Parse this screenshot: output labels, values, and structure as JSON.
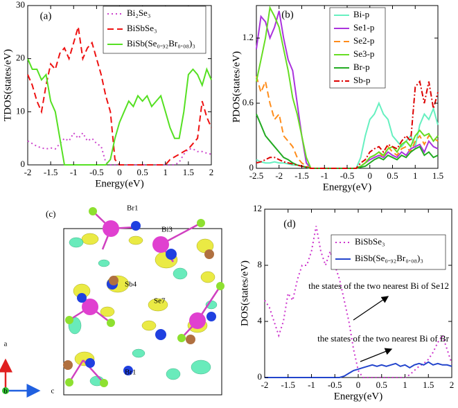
{
  "chart_data": [
    {
      "type": "line",
      "panel_label": "(a)",
      "xlabel": "Energy(eV)",
      "ylabel": "TDOS(states/eV)",
      "xlim": [
        -2,
        2
      ],
      "xticks": [
        -2,
        -1.5,
        -1,
        -0.5,
        0,
        0.5,
        1,
        1.5,
        2
      ],
      "ylim": [
        0,
        30
      ],
      "yticks": [
        0,
        10,
        20,
        30
      ],
      "legend": "upper right",
      "x": [
        -2,
        -1.9,
        -1.8,
        -1.7,
        -1.6,
        -1.5,
        -1.4,
        -1.3,
        -1.2,
        -1.1,
        -1,
        -0.9,
        -0.8,
        -0.7,
        -0.6,
        -0.5,
        -0.4,
        -0.3,
        -0.2,
        -0.1,
        0,
        0.1,
        0.2,
        0.3,
        0.4,
        0.5,
        0.6,
        0.7,
        0.8,
        0.9,
        1,
        1.1,
        1.2,
        1.3,
        1.4,
        1.5,
        1.6,
        1.7,
        1.8,
        1.9,
        2
      ],
      "series": [
        {
          "name": "Bi₂Se₃",
          "color": "#cc44cc",
          "style": "dotted",
          "values": [
            4.5,
            4,
            3.5,
            3.2,
            3,
            3.2,
            3,
            4,
            5,
            4.5,
            6,
            5,
            6,
            4.5,
            5,
            4,
            3.5,
            0.5,
            0,
            0,
            0,
            0,
            0,
            0,
            0,
            0,
            0,
            0,
            0,
            0,
            0,
            0,
            0,
            0.5,
            2,
            3,
            3,
            2.5,
            2.5,
            2.2,
            2
          ]
        },
        {
          "name": "BiSbSe₃",
          "color": "#ee1111",
          "style": "dashed",
          "values": [
            17,
            15,
            12,
            10,
            15,
            19,
            18,
            21,
            22,
            20,
            23,
            26,
            20,
            22,
            23,
            20,
            17,
            13,
            10,
            1,
            0,
            0,
            0,
            0,
            0,
            0,
            0,
            0,
            0,
            0,
            0,
            1,
            1.5,
            2,
            2.5,
            3,
            4,
            5,
            12,
            9,
            7
          ]
        },
        {
          "name": "BiSb(Se₀.₉₂Br₀.₀₈)₃",
          "color": "#55e022",
          "style": "solid",
          "values": [
            20,
            18,
            18,
            16,
            17,
            12,
            10,
            5,
            0,
            0,
            0,
            0,
            0,
            0,
            0,
            0,
            0,
            0,
            1,
            5,
            8,
            10,
            12,
            11,
            13,
            12,
            13,
            11,
            12,
            13,
            10,
            7,
            5,
            5,
            10,
            17,
            18,
            17,
            15,
            18,
            16
          ]
        }
      ]
    },
    {
      "type": "line",
      "panel_label": "(b)",
      "xlabel": "Energy(eV)",
      "ylabel": "PDOS(states/eV)",
      "xlim": [
        -2.5,
        1.5
      ],
      "xticks": [
        -2.5,
        -2,
        -1.5,
        -1,
        -0.5,
        0,
        0.5,
        1,
        1.5
      ],
      "ylim": [
        0,
        1.5
      ],
      "yticks": [
        0,
        0.6,
        1.2
      ],
      "legend": "upper right",
      "x": [
        -2.5,
        -2.4,
        -2.3,
        -2.2,
        -2.1,
        -2,
        -1.9,
        -1.8,
        -1.7,
        -1.6,
        -1.5,
        -1.4,
        -1.3,
        -1.2,
        -1.1,
        -1,
        -0.9,
        -0.8,
        -0.7,
        -0.6,
        -0.5,
        -0.4,
        -0.3,
        -0.2,
        -0.1,
        0,
        0.1,
        0.2,
        0.3,
        0.4,
        0.5,
        0.6,
        0.7,
        0.8,
        0.9,
        1,
        1.1,
        1.2,
        1.3,
        1.4,
        1.5
      ],
      "series": [
        {
          "name": "Bi-p",
          "color": "#66f0c0",
          "style": "solid",
          "values": [
            0.08,
            0.06,
            0.05,
            0.05,
            0.06,
            0.05,
            0.05,
            0.04,
            0.03,
            0.03,
            0.02,
            0.01,
            0,
            0,
            0,
            0,
            0,
            0,
            0,
            0,
            0,
            0,
            0,
            0.1,
            0.3,
            0.45,
            0.5,
            0.6,
            0.5,
            0.45,
            0.3,
            0.25,
            0.2,
            0.25,
            0.3,
            0.2,
            0.4,
            0.5,
            0.45,
            0.55,
            0.4
          ]
        },
        {
          "name": "Se1-p",
          "color": "#aa33dd",
          "style": "solid",
          "values": [
            1.1,
            1.4,
            1.35,
            1.2,
            1.3,
            1.45,
            1.2,
            1,
            0.9,
            0.6,
            0.3,
            0.05,
            0,
            0,
            0,
            0,
            0,
            0,
            0,
            0,
            0,
            0,
            0,
            0.02,
            0.05,
            0.08,
            0.1,
            0.12,
            0.1,
            0.15,
            0.12,
            0.1,
            0.15,
            0.12,
            0.18,
            0.2,
            0.22,
            0.15,
            0.25,
            0.2,
            0.18
          ]
        },
        {
          "name": "Se2-p",
          "color": "#ff8c1a",
          "style": "dashed",
          "values": [
            0.85,
            0.7,
            0.8,
            0.6,
            0.45,
            0.5,
            0.3,
            0.25,
            0.2,
            0.1,
            0.05,
            0.02,
            0,
            0,
            0,
            0,
            0,
            0,
            0,
            0,
            0,
            0,
            0,
            0.02,
            0.05,
            0.1,
            0.12,
            0.15,
            0.1,
            0.2,
            0.15,
            0.12,
            0.18,
            0.2,
            0.15,
            0.25,
            0.3,
            0.22,
            0.3,
            0.28,
            0.25
          ]
        },
        {
          "name": "Se3-p",
          "color": "#66dd22",
          "style": "solid",
          "values": [
            0.8,
            1,
            1.2,
            1.48,
            1.4,
            1.3,
            1.1,
            0.9,
            0.65,
            0.5,
            0.3,
            0.1,
            0,
            0,
            0,
            0,
            0,
            0,
            0,
            0,
            0,
            0,
            0,
            0.02,
            0.05,
            0.1,
            0.12,
            0.15,
            0.12,
            0.18,
            0.2,
            0.15,
            0.22,
            0.25,
            0.2,
            0.3,
            0.35,
            0.3,
            0.32,
            0.25,
            0.3
          ]
        },
        {
          "name": "Br-p",
          "color": "#22aa22",
          "style": "solid",
          "values": [
            0.5,
            0.4,
            0.3,
            0.25,
            0.2,
            0.15,
            0.1,
            0.08,
            0.05,
            0.03,
            0.02,
            0.01,
            0,
            0,
            0,
            0,
            0,
            0,
            0,
            0,
            0,
            0,
            0,
            0.01,
            0.02,
            0.05,
            0.08,
            0.1,
            0.08,
            0.12,
            0.1,
            0.08,
            0.12,
            0.1,
            0.15,
            0.18,
            0.2,
            0.12,
            0.15,
            0.1,
            0.12
          ]
        },
        {
          "name": "Sb-p",
          "color": "#dd0000",
          "style": "dashdot",
          "values": [
            0.05,
            0.06,
            0.08,
            0.1,
            0.1,
            0.08,
            0.06,
            0.05,
            0.04,
            0.03,
            0.02,
            0.01,
            0,
            0,
            0,
            0,
            0,
            0,
            0,
            0,
            0,
            0,
            0,
            0.05,
            0.08,
            0.15,
            0.18,
            0.2,
            0.15,
            0.22,
            0.2,
            0.18,
            0.25,
            0.3,
            0.25,
            0.75,
            0.8,
            0.6,
            0.8,
            0.55,
            0.7
          ]
        }
      ]
    },
    {
      "type": "line",
      "panel_label": "(d)",
      "xlabel": "Energy(eV)",
      "ylabel": "DOS(states/eV)",
      "xlim": [
        -2,
        2
      ],
      "xticks": [
        -2,
        -1.5,
        -1,
        -0.5,
        0,
        0.5,
        1,
        1.5,
        2
      ],
      "ylim": [
        0,
        12
      ],
      "yticks": [
        0,
        4,
        8,
        12
      ],
      "legend": "upper right",
      "annotations": [
        "the states of the two nearest Bi of Se12",
        "the states of the two nearest Bi of Br"
      ],
      "x": [
        -2,
        -1.9,
        -1.8,
        -1.7,
        -1.6,
        -1.5,
        -1.4,
        -1.3,
        -1.2,
        -1.1,
        -1,
        -0.9,
        -0.8,
        -0.7,
        -0.6,
        -0.5,
        -0.4,
        -0.3,
        -0.2,
        -0.1,
        0,
        0.1,
        0.2,
        0.3,
        0.4,
        0.5,
        0.6,
        0.7,
        0.8,
        0.9,
        1,
        1.1,
        1.2,
        1.3,
        1.4,
        1.5,
        1.6,
        1.7,
        1.8,
        1.9,
        2
      ],
      "series": [
        {
          "name": "BiSbSe₃",
          "color": "#cc33cc",
          "style": "dotted",
          "values": [
            5.5,
            5,
            4,
            3,
            4,
            6,
            5.5,
            7,
            8,
            8,
            9,
            10.8,
            9,
            8,
            9,
            8,
            7,
            5.5,
            4,
            2,
            0.5,
            0,
            0,
            0,
            0,
            0,
            0,
            0,
            0,
            0,
            0,
            0.2,
            0.5,
            0.8,
            1,
            1.3,
            1.8,
            2.5,
            3,
            2,
            1
          ]
        },
        {
          "name": "BiSb(Se₀.₉₂Br₀.₀₈)₃",
          "color": "#2244cc",
          "style": "solid",
          "values": [
            0,
            0,
            0,
            0,
            0,
            0,
            0,
            0,
            0,
            0,
            0,
            0,
            0,
            0,
            0,
            0,
            0,
            0.1,
            0.3,
            0.5,
            0.6,
            0.7,
            0.8,
            0.9,
            0.8,
            0.9,
            0.8,
            0.9,
            1,
            0.8,
            0.9,
            0.7,
            0.9,
            1,
            0.9,
            1.1,
            0.9,
            1,
            0.9,
            0.9,
            0.8
          ]
        }
      ]
    }
  ],
  "structure": {
    "panel_label": "(c)",
    "atom_labels": [
      "Br1",
      "Bi3",
      "Sb4",
      "Se7",
      "Br1"
    ],
    "axes": [
      "a",
      "b",
      "c"
    ]
  }
}
